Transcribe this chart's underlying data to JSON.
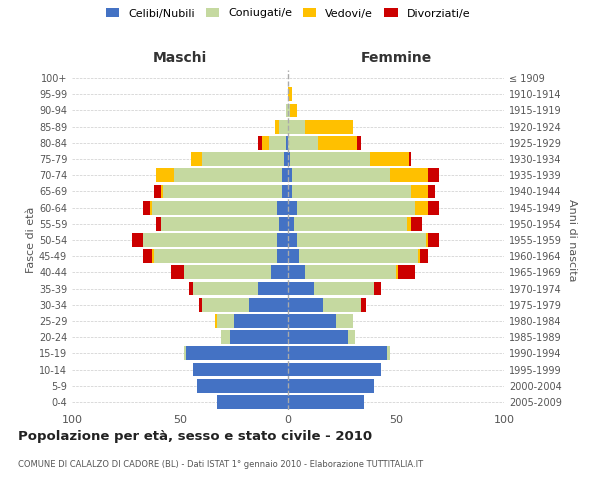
{
  "age_groups": [
    "0-4",
    "5-9",
    "10-14",
    "15-19",
    "20-24",
    "25-29",
    "30-34",
    "35-39",
    "40-44",
    "45-49",
    "50-54",
    "55-59",
    "60-64",
    "65-69",
    "70-74",
    "75-79",
    "80-84",
    "85-89",
    "90-94",
    "95-99",
    "100+"
  ],
  "birth_years": [
    "2005-2009",
    "2000-2004",
    "1995-1999",
    "1990-1994",
    "1985-1989",
    "1980-1984",
    "1975-1979",
    "1970-1974",
    "1965-1969",
    "1960-1964",
    "1955-1959",
    "1950-1954",
    "1945-1949",
    "1940-1944",
    "1935-1939",
    "1930-1934",
    "1925-1929",
    "1920-1924",
    "1915-1919",
    "1910-1914",
    "≤ 1909"
  ],
  "male": {
    "celibi": [
      33,
      42,
      44,
      47,
      27,
      25,
      18,
      14,
      8,
      5,
      5,
      4,
      5,
      3,
      3,
      2,
      1,
      0,
      0,
      0,
      0
    ],
    "coniugati": [
      0,
      0,
      0,
      1,
      4,
      8,
      22,
      30,
      40,
      57,
      62,
      55,
      58,
      55,
      50,
      38,
      8,
      4,
      1,
      0,
      0
    ],
    "vedovi": [
      0,
      0,
      0,
      0,
      0,
      1,
      0,
      0,
      0,
      1,
      0,
      0,
      1,
      1,
      8,
      5,
      3,
      2,
      0,
      0,
      0
    ],
    "divorziati": [
      0,
      0,
      0,
      0,
      0,
      0,
      1,
      2,
      6,
      4,
      5,
      2,
      3,
      3,
      0,
      0,
      2,
      0,
      0,
      0,
      0
    ]
  },
  "female": {
    "nubili": [
      35,
      40,
      43,
      46,
      28,
      22,
      16,
      12,
      8,
      5,
      4,
      3,
      4,
      2,
      2,
      1,
      0,
      0,
      0,
      0,
      0
    ],
    "coniugate": [
      0,
      0,
      0,
      1,
      3,
      8,
      18,
      28,
      42,
      55,
      60,
      52,
      55,
      55,
      45,
      37,
      14,
      8,
      1,
      0,
      0
    ],
    "vedove": [
      0,
      0,
      0,
      0,
      0,
      0,
      0,
      0,
      1,
      1,
      1,
      2,
      6,
      8,
      18,
      18,
      18,
      22,
      3,
      2,
      0
    ],
    "divorziate": [
      0,
      0,
      0,
      0,
      0,
      0,
      2,
      3,
      8,
      4,
      5,
      5,
      5,
      3,
      5,
      1,
      2,
      0,
      0,
      0,
      0
    ]
  },
  "colors": {
    "celibi": "#4472c4",
    "coniugati": "#c5d9a0",
    "vedovi": "#ffc000",
    "divorziati": "#cc0000"
  },
  "xlim": 100,
  "title": "Popolazione per età, sesso e stato civile - 2010",
  "subtitle": "COMUNE DI CALALZO DI CADORE (BL) - Dati ISTAT 1° gennaio 2010 - Elaborazione TUTTITALIA.IT",
  "xlabel_left": "Maschi",
  "xlabel_right": "Femmine",
  "ylabel_left": "Fasce di età",
  "ylabel_right": "Anni di nascita",
  "bg_color": "#ffffff",
  "grid_color": "#cccccc"
}
